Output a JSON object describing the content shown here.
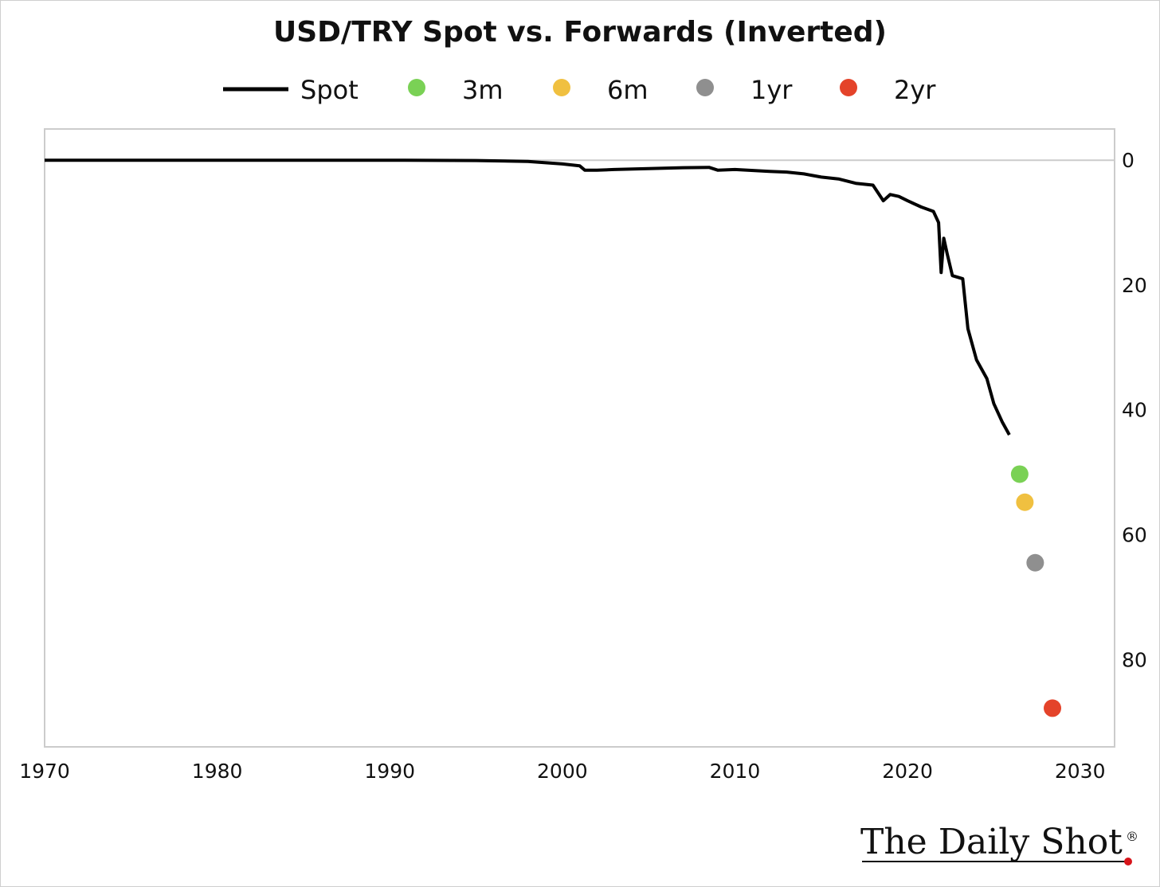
{
  "chart_data": {
    "type": "line",
    "title": "USD/TRY Spot vs. Forwards (Inverted)",
    "xlabel": "",
    "ylabel": "",
    "xlim": [
      1970,
      2032
    ],
    "ylim": [
      -5,
      94
    ],
    "y_inverted": true,
    "y_axis_side": "right",
    "xticks": [
      1970,
      1980,
      1990,
      2000,
      2010,
      2020,
      2030
    ],
    "yticks": [
      0,
      20,
      40,
      60,
      80
    ],
    "grid": false,
    "legend_position": "top",
    "series": [
      {
        "name": "Spot",
        "type": "line",
        "color": "#000000",
        "points": [
          [
            1970,
            0.0
          ],
          [
            1980,
            0.0
          ],
          [
            1990,
            0.0
          ],
          [
            1995,
            0.05
          ],
          [
            1998,
            0.2
          ],
          [
            2000,
            0.6
          ],
          [
            2001.0,
            0.9
          ],
          [
            2001.3,
            1.6
          ],
          [
            2002.0,
            1.6
          ],
          [
            2003.0,
            1.5
          ],
          [
            2005.0,
            1.35
          ],
          [
            2007.0,
            1.2
          ],
          [
            2008.5,
            1.15
          ],
          [
            2009.0,
            1.6
          ],
          [
            2010.0,
            1.5
          ],
          [
            2012.0,
            1.8
          ],
          [
            2013.0,
            1.9
          ],
          [
            2014.0,
            2.2
          ],
          [
            2015.0,
            2.7
          ],
          [
            2016.0,
            3.0
          ],
          [
            2017.0,
            3.7
          ],
          [
            2018.0,
            4.0
          ],
          [
            2018.6,
            6.5
          ],
          [
            2019.0,
            5.5
          ],
          [
            2019.5,
            5.8
          ],
          [
            2020.0,
            6.5
          ],
          [
            2020.8,
            7.5
          ],
          [
            2021.5,
            8.2
          ],
          [
            2021.8,
            10.0
          ],
          [
            2021.95,
            18.0
          ],
          [
            2022.1,
            12.5
          ],
          [
            2022.3,
            15.0
          ],
          [
            2022.6,
            18.5
          ],
          [
            2023.2,
            19.0
          ],
          [
            2023.5,
            27.0
          ],
          [
            2024.0,
            32.0
          ],
          [
            2024.6,
            35.0
          ],
          [
            2025.0,
            39.0
          ],
          [
            2025.5,
            42.0
          ],
          [
            2025.9,
            44.0
          ]
        ]
      },
      {
        "name": "3m",
        "type": "point",
        "color": "#7ad155",
        "x": 2026.5,
        "y": 50.3
      },
      {
        "name": "6m",
        "type": "point",
        "color": "#f0c040",
        "x": 2026.8,
        "y": 54.8
      },
      {
        "name": "1yr",
        "type": "point",
        "color": "#8f8f8f",
        "x": 2027.4,
        "y": 64.5
      },
      {
        "name": "2yr",
        "type": "point",
        "color": "#e4432a",
        "x": 2028.4,
        "y": 87.8
      }
    ]
  },
  "logo": {
    "text": "The Daily Shot",
    "mark": "®",
    "accent_color": "#d7141a"
  }
}
